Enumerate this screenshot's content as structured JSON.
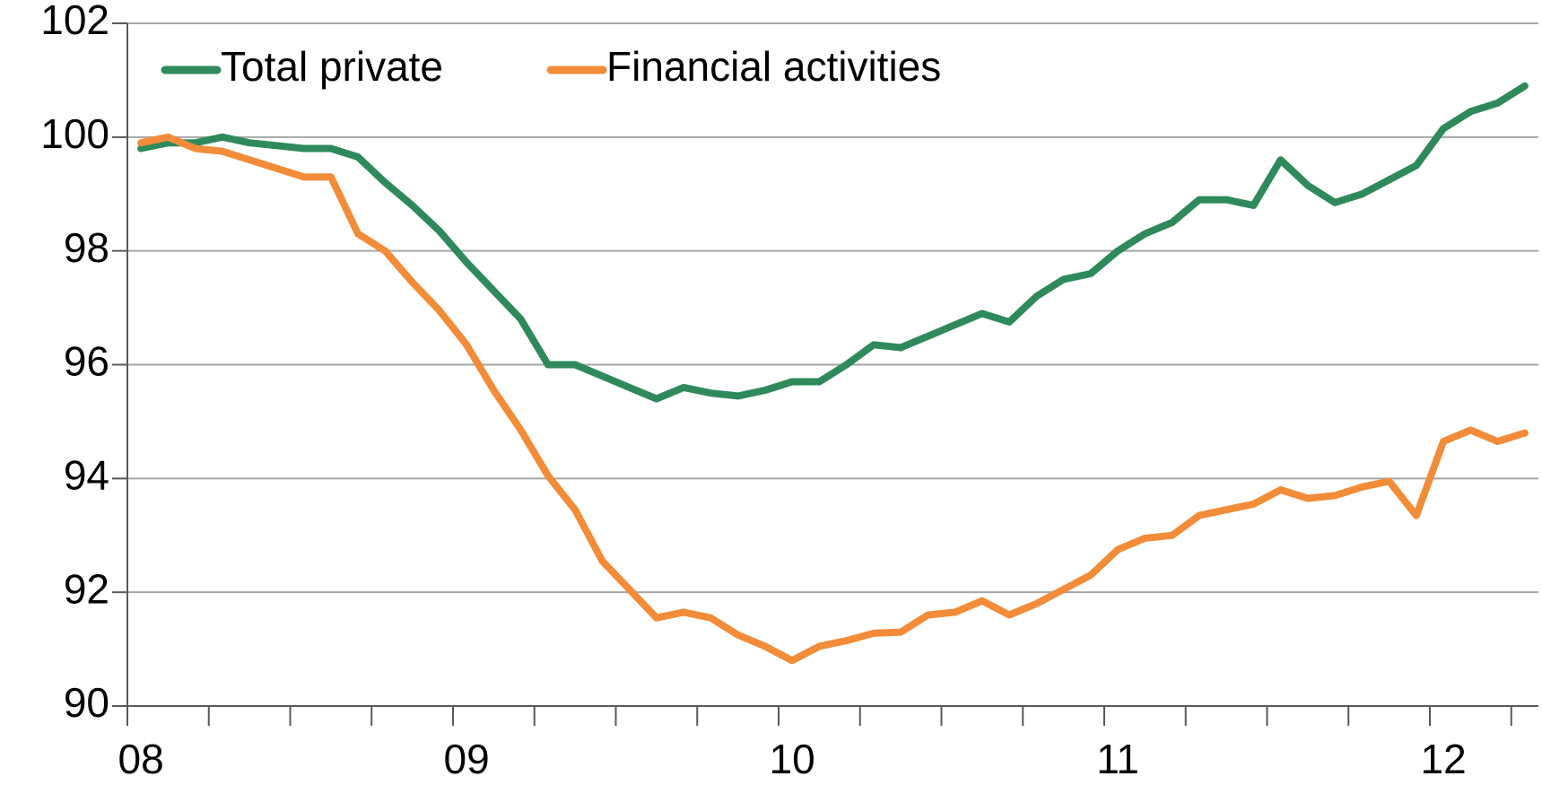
{
  "chart_data": {
    "type": "line",
    "categories": [
      "08",
      null,
      null,
      null,
      null,
      null,
      null,
      null,
      null,
      null,
      null,
      null,
      "09",
      null,
      null,
      null,
      null,
      null,
      null,
      null,
      null,
      null,
      null,
      null,
      "10",
      null,
      null,
      null,
      null,
      null,
      null,
      null,
      null,
      null,
      null,
      null,
      "11",
      null,
      null,
      null,
      null,
      null,
      null,
      null,
      null,
      null,
      null,
      null,
      "12",
      null,
      null,
      null
    ],
    "series": [
      {
        "name": "Total private",
        "color": "#2e8a5b",
        "values": [
          99.8,
          99.9,
          99.9,
          100.0,
          99.9,
          99.85,
          99.8,
          99.8,
          99.65,
          99.2,
          98.8,
          98.35,
          97.8,
          97.3,
          96.8,
          96.0,
          96.0,
          95.8,
          95.6,
          95.4,
          95.6,
          95.5,
          95.45,
          95.55,
          95.7,
          95.7,
          96.0,
          96.35,
          96.3,
          96.5,
          96.7,
          96.9,
          96.75,
          97.2,
          97.5,
          97.6,
          98.0,
          98.3,
          98.5,
          98.9,
          98.9,
          98.8,
          99.6,
          99.15,
          98.85,
          99.0,
          99.25,
          99.5,
          100.15,
          100.45,
          100.6,
          100.9
        ]
      },
      {
        "name": "Financial activities",
        "color": "#f28c38",
        "values": [
          99.9,
          100.0,
          99.8,
          99.75,
          99.6,
          99.45,
          99.3,
          99.3,
          98.3,
          98.0,
          97.45,
          96.95,
          96.35,
          95.55,
          94.85,
          94.05,
          93.45,
          92.55,
          92.05,
          91.55,
          91.65,
          91.55,
          91.25,
          91.05,
          90.8,
          91.05,
          91.15,
          91.28,
          91.3,
          91.6,
          91.65,
          91.85,
          91.6,
          91.8,
          92.05,
          92.3,
          92.75,
          92.95,
          93.0,
          93.35,
          93.45,
          93.55,
          93.8,
          93.65,
          93.7,
          93.85,
          93.95,
          93.35,
          94.65,
          94.85,
          94.65,
          94.8
        ]
      }
    ],
    "ylim": [
      90,
      102
    ],
    "yticks": [
      90,
      92,
      94,
      96,
      98,
      100,
      102
    ],
    "grid": true,
    "legend": "upper left"
  }
}
